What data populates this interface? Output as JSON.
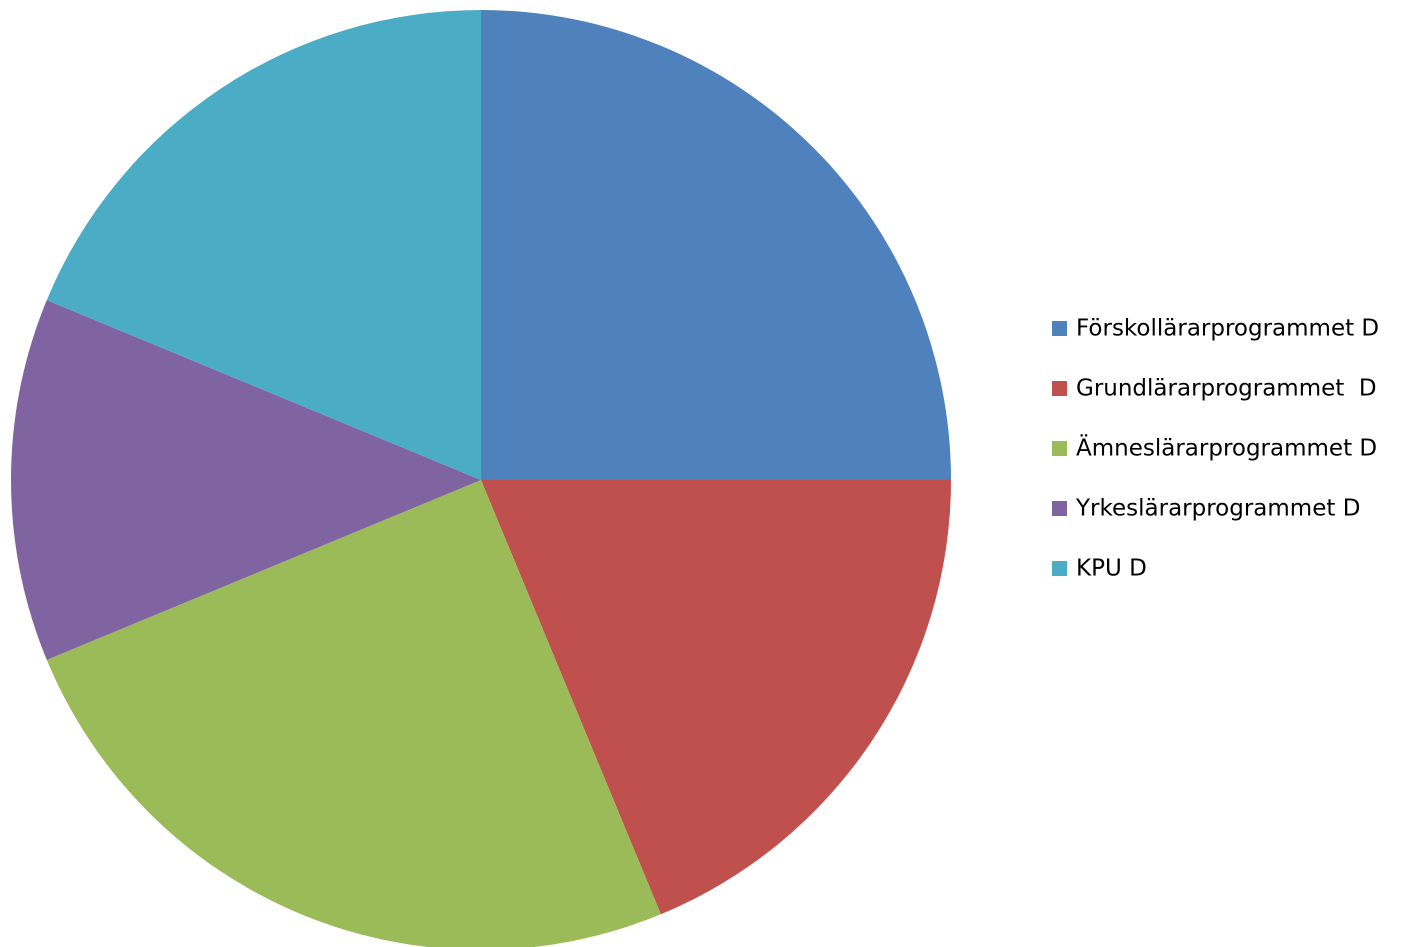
{
  "chart_data": {
    "type": "pie",
    "categories": [
      "Förskollärarprogrammet D",
      "Grundlärarprogrammet  D",
      "Ämneslärarprogrammet D",
      "Yrkeslärarprogrammet D",
      "KPU D"
    ],
    "values": [
      25,
      18.75,
      25,
      12.5,
      18.75
    ],
    "colors": [
      "#4f81bd",
      "#c0504d",
      "#9bbb59",
      "#8064a2",
      "#4bacc6"
    ],
    "legend": "right"
  }
}
